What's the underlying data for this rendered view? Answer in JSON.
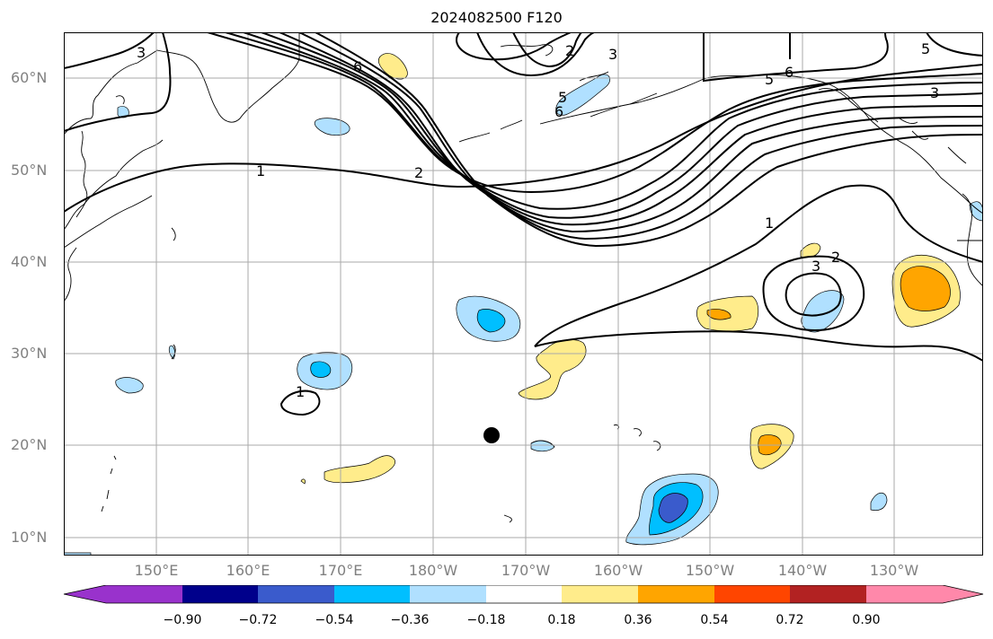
{
  "title": "2024082500 F120",
  "lat_labels": [
    "60°N",
    "50°N",
    "40°N",
    "30°N",
    "20°N",
    "10°N"
  ],
  "lon_labels": [
    "150°E",
    "160°E",
    "170°E",
    "180°W",
    "170°W",
    "160°W",
    "150°W",
    "140°W",
    "130°W"
  ],
  "contour_labels": [
    "3",
    "6",
    "2",
    "3",
    "5",
    "6",
    "5",
    "6",
    "5",
    "3",
    "1",
    "2",
    "1",
    "2",
    "3",
    "1"
  ],
  "colorbar": {
    "ticks": [
      "−0.90",
      "−0.72",
      "−0.54",
      "−0.36",
      "−0.18",
      "0.18",
      "0.36",
      "0.54",
      "0.72",
      "0.90"
    ],
    "colors": [
      "#9932cc",
      "#00008b",
      "#3a5bcc",
      "#00bfff",
      "#b0e0ff",
      "#ffffff",
      "#ffec8b",
      "#ffa500",
      "#ff4500",
      "#b22222",
      "#ff88aa"
    ]
  }
}
